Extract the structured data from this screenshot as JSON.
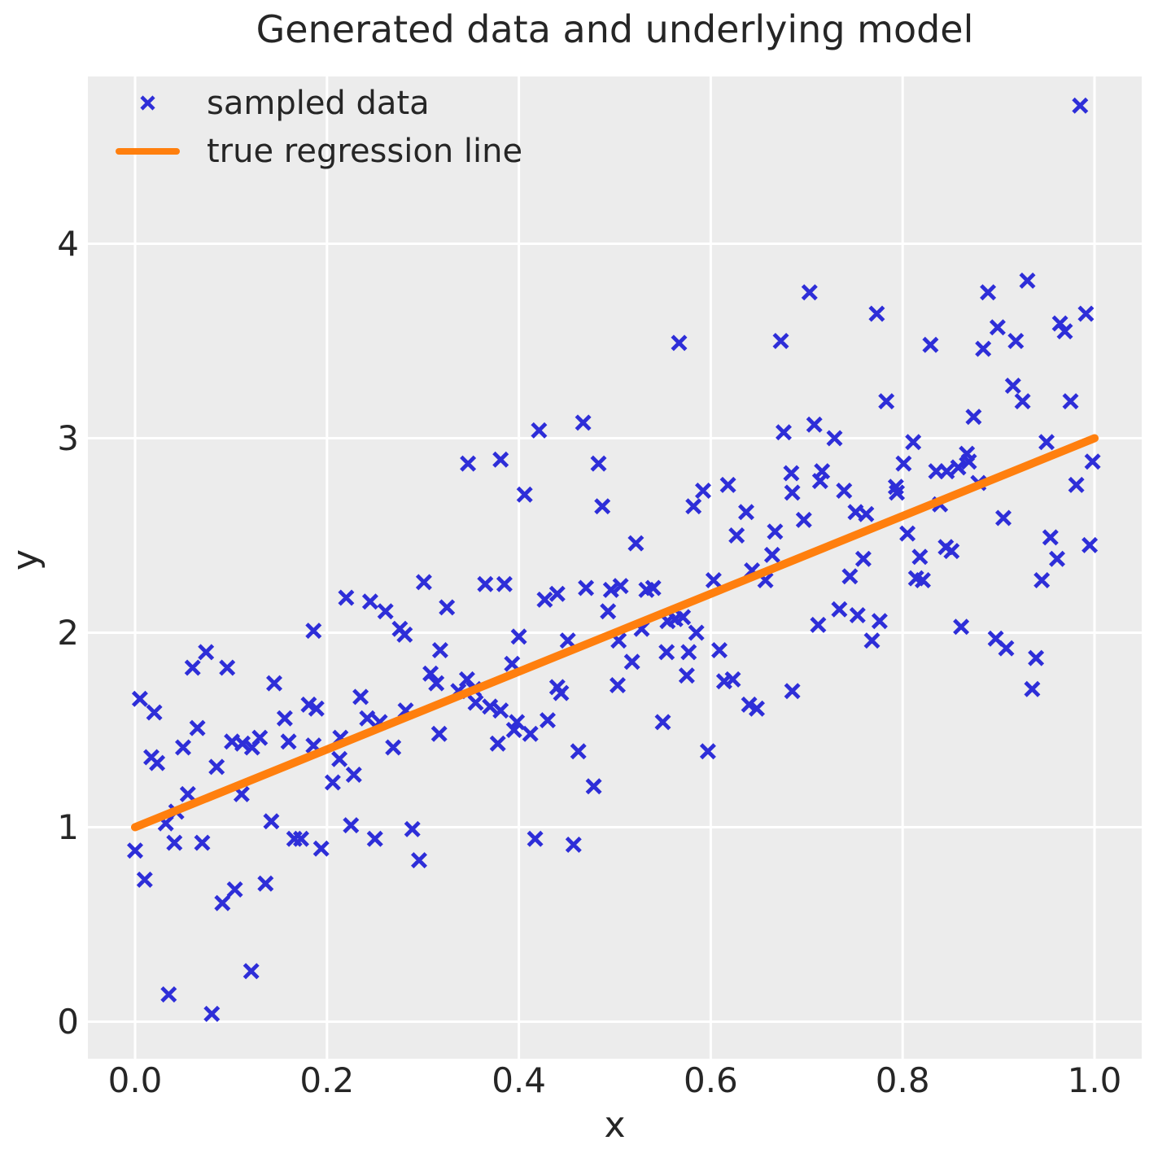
{
  "figure": {
    "title": "Generated data and underlying model",
    "xlabel": "x",
    "ylabel": "y"
  },
  "legend": {
    "items": [
      {
        "icon": "x-marker-icon",
        "label": "sampled data"
      },
      {
        "icon": "line-segment-icon",
        "label": "true regression line"
      }
    ]
  },
  "colors": {
    "marker": "#2e2ed8",
    "line": "#ff7f0e",
    "panel_background": "#ececec",
    "grid": "#ffffff",
    "text": "#262626"
  },
  "chart_data": {
    "type": "scatter",
    "title": "Generated data and underlying model",
    "xlabel": "x",
    "ylabel": "y",
    "xlim": [
      -0.049,
      1.049
    ],
    "ylim": [
      -0.19,
      4.86
    ],
    "grid": true,
    "legend_position": "upper left",
    "x_ticks": {
      "values": [
        0.0,
        0.2,
        0.4,
        0.6,
        0.8,
        1.0
      ],
      "labels": [
        "0.0",
        "0.2",
        "0.4",
        "0.6",
        "0.8",
        "1.0"
      ]
    },
    "y_ticks": {
      "values": [
        0,
        1,
        2,
        3,
        4
      ],
      "labels": [
        "0",
        "1",
        "2",
        "3",
        "4"
      ]
    },
    "series": [
      {
        "name": "sampled data",
        "type": "scatter",
        "marker": "x",
        "color": "#2e2ed8",
        "points": [
          [
            0.985,
            4.71
          ],
          [
            0.703,
            3.75
          ],
          [
            0.889,
            3.75
          ],
          [
            0.93,
            3.81
          ],
          [
            0.773,
            3.64
          ],
          [
            0.899,
            3.57
          ],
          [
            0.918,
            3.5
          ],
          [
            0.964,
            3.59
          ],
          [
            0.969,
            3.55
          ],
          [
            0.991,
            3.64
          ],
          [
            0.829,
            3.48
          ],
          [
            0.884,
            3.46
          ],
          [
            0.783,
            3.19
          ],
          [
            0.915,
            3.27
          ],
          [
            0.925,
            3.19
          ],
          [
            0.975,
            3.19
          ],
          [
            0.567,
            3.49
          ],
          [
            0.673,
            3.5
          ],
          [
            0.421,
            3.04
          ],
          [
            0.467,
            3.08
          ],
          [
            0.676,
            3.03
          ],
          [
            0.347,
            2.87
          ],
          [
            0.381,
            2.89
          ],
          [
            0.483,
            2.87
          ],
          [
            0.406,
            2.71
          ],
          [
            0.487,
            2.65
          ],
          [
            0.592,
            2.73
          ],
          [
            0.618,
            2.76
          ],
          [
            0.582,
            2.65
          ],
          [
            0.637,
            2.62
          ],
          [
            0.684,
            2.82
          ],
          [
            0.627,
            2.5
          ],
          [
            0.667,
            2.52
          ],
          [
            0.664,
            2.4
          ],
          [
            0.522,
            2.46
          ],
          [
            0.643,
            2.32
          ],
          [
            0.603,
            2.27
          ],
          [
            0.657,
            2.27
          ],
          [
            0.365,
            2.25
          ],
          [
            0.385,
            2.25
          ],
          [
            0.427,
            2.17
          ],
          [
            0.44,
            2.2
          ],
          [
            0.47,
            2.23
          ],
          [
            0.496,
            2.22
          ],
          [
            0.506,
            2.24
          ],
          [
            0.533,
            2.22
          ],
          [
            0.54,
            2.23
          ],
          [
            0.493,
            2.11
          ],
          [
            0.555,
            2.06
          ],
          [
            0.563,
            2.07
          ],
          [
            0.571,
            2.08
          ],
          [
            0.528,
            2.02
          ],
          [
            0.504,
            1.96
          ],
          [
            0.4,
            1.98
          ],
          [
            0.451,
            1.96
          ],
          [
            0.585,
            2.0
          ],
          [
            0.554,
            1.9
          ],
          [
            0.577,
            1.9
          ],
          [
            0.609,
            1.91
          ],
          [
            0.518,
            1.85
          ],
          [
            0.393,
            1.84
          ],
          [
            0.503,
            1.73
          ],
          [
            0.575,
            1.78
          ],
          [
            0.614,
            1.75
          ],
          [
            0.623,
            1.76
          ],
          [
            0.44,
            1.72
          ],
          [
            0.444,
            1.69
          ],
          [
            0.64,
            1.63
          ],
          [
            0.648,
            1.61
          ],
          [
            0.685,
            1.7
          ],
          [
            0.55,
            1.54
          ],
          [
            0.398,
            1.54
          ],
          [
            0.43,
            1.55
          ],
          [
            0.346,
            1.76
          ],
          [
            0.353,
            1.71
          ],
          [
            0.337,
            1.7
          ],
          [
            0.355,
            1.64
          ],
          [
            0.37,
            1.62
          ],
          [
            0.381,
            1.6
          ],
          [
            0.395,
            1.5
          ],
          [
            0.412,
            1.48
          ],
          [
            0.325,
            2.13
          ],
          [
            0.318,
            1.91
          ],
          [
            0.308,
            1.79
          ],
          [
            0.314,
            1.74
          ],
          [
            0.22,
            2.18
          ],
          [
            0.245,
            2.16
          ],
          [
            0.261,
            2.11
          ],
          [
            0.301,
            2.26
          ],
          [
            0.276,
            2.02
          ],
          [
            0.281,
            1.99
          ],
          [
            0.186,
            2.01
          ],
          [
            0.074,
            1.9
          ],
          [
            0.06,
            1.82
          ],
          [
            0.096,
            1.82
          ],
          [
            0.145,
            1.74
          ],
          [
            0.005,
            1.66
          ],
          [
            0.02,
            1.59
          ],
          [
            0.065,
            1.51
          ],
          [
            0.181,
            1.63
          ],
          [
            0.189,
            1.61
          ],
          [
            0.156,
            1.56
          ],
          [
            0.235,
            1.67
          ],
          [
            0.242,
            1.56
          ],
          [
            0.255,
            1.54
          ],
          [
            0.282,
            1.6
          ],
          [
            0.05,
            1.41
          ],
          [
            0.017,
            1.36
          ],
          [
            0.023,
            1.33
          ],
          [
            0.085,
            1.31
          ],
          [
            0.101,
            1.44
          ],
          [
            0.112,
            1.43
          ],
          [
            0.122,
            1.41
          ],
          [
            0.13,
            1.46
          ],
          [
            0.16,
            1.44
          ],
          [
            0.186,
            1.42
          ],
          [
            0.214,
            1.46
          ],
          [
            0.213,
            1.35
          ],
          [
            0.269,
            1.41
          ],
          [
            0.228,
            1.27
          ],
          [
            0.206,
            1.23
          ],
          [
            0.055,
            1.17
          ],
          [
            0.111,
            1.17
          ],
          [
            0.043,
            1.08
          ],
          [
            0.142,
            1.03
          ],
          [
            0.032,
            1.02
          ],
          [
            0.041,
            0.92
          ],
          [
            0.07,
            0.92
          ],
          [
            0.0,
            0.88
          ],
          [
            0.166,
            0.94
          ],
          [
            0.173,
            0.94
          ],
          [
            0.194,
            0.89
          ],
          [
            0.01,
            0.73
          ],
          [
            0.104,
            0.68
          ],
          [
            0.136,
            0.71
          ],
          [
            0.091,
            0.61
          ],
          [
            0.121,
            0.26
          ],
          [
            0.035,
            0.14
          ],
          [
            0.08,
            0.04
          ],
          [
            0.225,
            1.01
          ],
          [
            0.25,
            0.94
          ],
          [
            0.289,
            0.99
          ],
          [
            0.296,
            0.83
          ],
          [
            0.378,
            1.43
          ],
          [
            0.462,
            1.39
          ],
          [
            0.478,
            1.21
          ],
          [
            0.597,
            1.39
          ],
          [
            0.417,
            0.94
          ],
          [
            0.457,
            0.91
          ],
          [
            0.317,
            1.48
          ],
          [
            0.708,
            3.07
          ],
          [
            0.729,
            3.0
          ],
          [
            0.874,
            3.11
          ],
          [
            0.811,
            2.98
          ],
          [
            0.95,
            2.98
          ],
          [
            0.801,
            2.87
          ],
          [
            0.867,
            2.92
          ],
          [
            0.869,
            2.88
          ],
          [
            0.998,
            2.88
          ],
          [
            0.835,
            2.83
          ],
          [
            0.846,
            2.83
          ],
          [
            0.858,
            2.85
          ],
          [
            0.716,
            2.83
          ],
          [
            0.714,
            2.78
          ],
          [
            0.685,
            2.72
          ],
          [
            0.739,
            2.73
          ],
          [
            0.793,
            2.75
          ],
          [
            0.794,
            2.72
          ],
          [
            0.751,
            2.62
          ],
          [
            0.762,
            2.61
          ],
          [
            0.839,
            2.66
          ],
          [
            0.879,
            2.77
          ],
          [
            0.981,
            2.76
          ],
          [
            0.905,
            2.59
          ],
          [
            0.805,
            2.51
          ],
          [
            0.954,
            2.49
          ],
          [
            0.995,
            2.45
          ],
          [
            0.845,
            2.44
          ],
          [
            0.851,
            2.42
          ],
          [
            0.818,
            2.39
          ],
          [
            0.759,
            2.38
          ],
          [
            0.961,
            2.38
          ],
          [
            0.745,
            2.29
          ],
          [
            0.814,
            2.28
          ],
          [
            0.821,
            2.27
          ],
          [
            0.945,
            2.27
          ],
          [
            0.734,
            2.12
          ],
          [
            0.712,
            2.04
          ],
          [
            0.753,
            2.09
          ],
          [
            0.776,
            2.06
          ],
          [
            0.861,
            2.03
          ],
          [
            0.768,
            1.96
          ],
          [
            0.897,
            1.97
          ],
          [
            0.908,
            1.92
          ],
          [
            0.939,
            1.87
          ],
          [
            0.935,
            1.71
          ],
          [
            0.697,
            2.58
          ]
        ]
      },
      {
        "name": "true regression line",
        "type": "line",
        "color": "#ff7f0e",
        "points": [
          [
            0.0,
            1.0
          ],
          [
            1.0,
            3.0
          ]
        ]
      }
    ]
  }
}
